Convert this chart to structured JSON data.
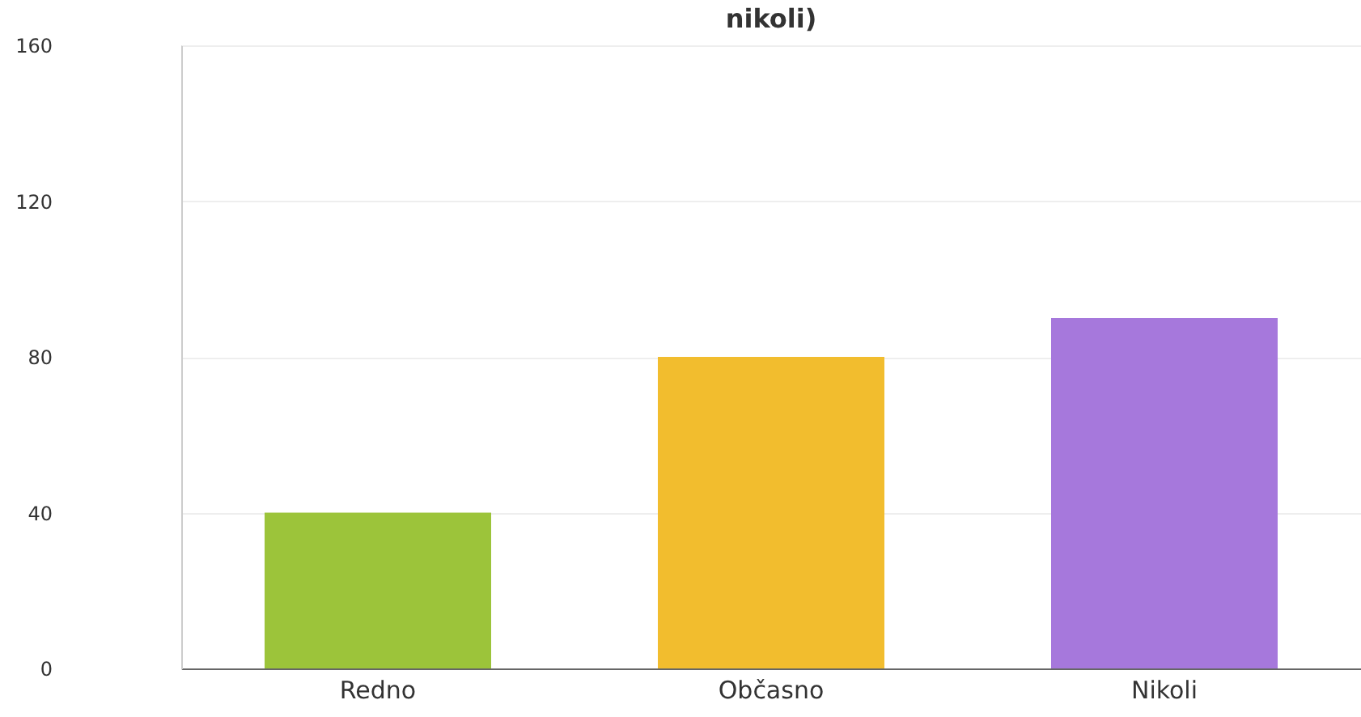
{
  "chart_data": {
    "type": "bar",
    "title": "nikoli)",
    "categories": [
      "Redno",
      "Občasno",
      "Nikoli"
    ],
    "values": [
      40,
      80,
      90
    ],
    "colors": [
      "#9cc43a",
      "#f2bd2e",
      "#a678dc"
    ],
    "ylim": [
      0,
      160
    ],
    "yticks": [
      0,
      40,
      80,
      120,
      160
    ],
    "grid": "y"
  }
}
